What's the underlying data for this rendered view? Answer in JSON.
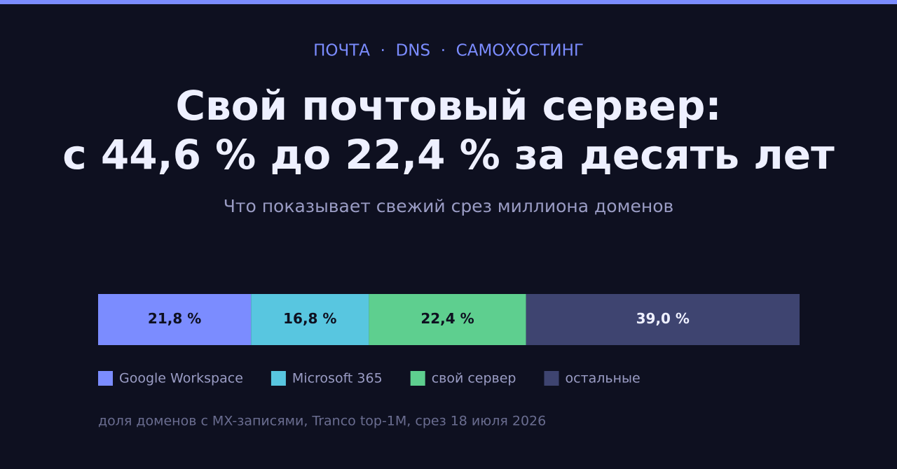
{
  "chart_data": {
    "type": "stacked-bar",
    "kicker": "ПОЧТА  ·  DNS  ·  САМОХОСТИНГ",
    "title": [
      "Свой почтовый сервер:",
      "с 44,6 % до 22,4 % за десять лет"
    ],
    "subtitle": "Что показывает свежий срез миллиона доменов",
    "series": [
      {
        "name": "Google Workspace",
        "color": "#7b8cff",
        "label_color": "#0e1020",
        "values": [
          21.8
        ],
        "value_labels": [
          "21,8 %"
        ]
      },
      {
        "name": "Microsoft 365",
        "color": "#58c6e0",
        "label_color": "#0e1020",
        "values": [
          16.8
        ],
        "value_labels": [
          "16,8 %"
        ]
      },
      {
        "name": "свой сервер",
        "color": "#5ecf8f",
        "label_color": "#0e1020",
        "values": [
          22.4
        ],
        "value_labels": [
          "22,4 %"
        ]
      },
      {
        "name": "остальные",
        "color": "#3e4470",
        "label_color": "#eef0ff",
        "values": [
          39.0
        ],
        "value_labels": [
          "39,0 %"
        ]
      }
    ],
    "note": "доля доменов с MX-записями, Tranco top-1M, срез 18 июля 2026"
  }
}
